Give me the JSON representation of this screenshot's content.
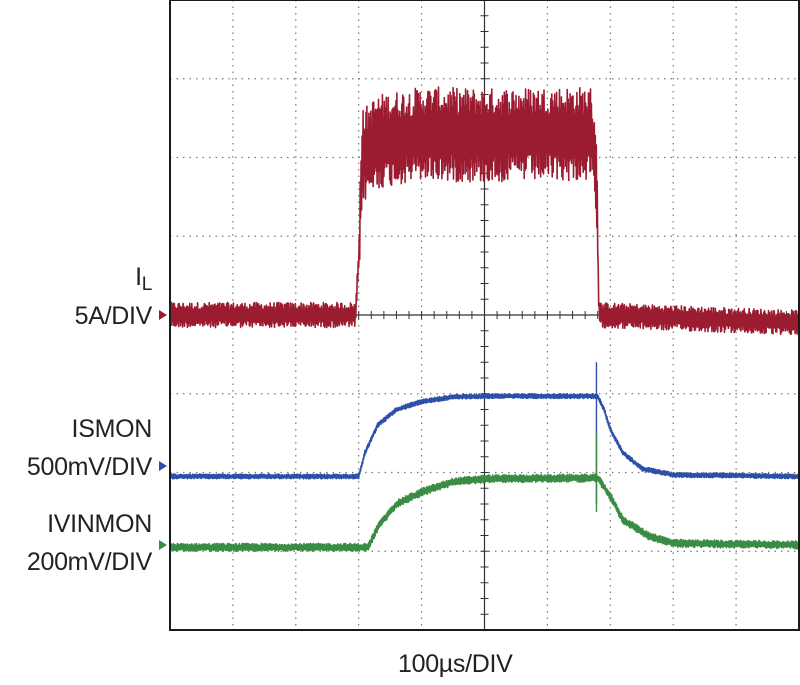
{
  "chart_data": {
    "type": "line",
    "title": "",
    "xlabel": "100µs/DIV",
    "grid": true,
    "divisions": {
      "x": 10,
      "y": 8
    },
    "x_units": "divisions",
    "y_units": "divisions",
    "series": [
      {
        "name": "IL",
        "scale": "5A/DIV",
        "color": "#9b1b30",
        "noise": 0.16,
        "ripple": 0.6,
        "points": [
          [
            0,
            4.0
          ],
          [
            2.95,
            4.0
          ],
          [
            3.0,
            3.3
          ],
          [
            3.05,
            2.0
          ],
          [
            3.3,
            1.8
          ],
          [
            4.0,
            1.7
          ],
          [
            5.0,
            1.72
          ],
          [
            6.0,
            1.7
          ],
          [
            6.7,
            1.7
          ],
          [
            6.78,
            2.2
          ],
          [
            6.82,
            4.0
          ],
          [
            10,
            4.1
          ]
        ]
      },
      {
        "name": "ISMON",
        "scale": "500mV/DIV",
        "color": "#2e4fa8",
        "noise": 0.03,
        "ripple": 0,
        "points": [
          [
            0,
            6.05
          ],
          [
            3.0,
            6.05
          ],
          [
            3.1,
            5.75
          ],
          [
            3.3,
            5.4
          ],
          [
            3.6,
            5.2
          ],
          [
            4.0,
            5.1
          ],
          [
            4.5,
            5.04
          ],
          [
            5.0,
            5.03
          ],
          [
            6.8,
            5.03
          ],
          [
            6.9,
            5.2
          ],
          [
            7.0,
            5.45
          ],
          [
            7.2,
            5.75
          ],
          [
            7.5,
            5.95
          ],
          [
            8.0,
            6.03
          ],
          [
            10,
            6.05
          ]
        ]
      },
      {
        "name": "IVINMON",
        "scale": "200mV/DIV",
        "color": "#3a8c45",
        "noise": 0.05,
        "ripple": 0,
        "points": [
          [
            0,
            6.95
          ],
          [
            3.15,
            6.95
          ],
          [
            3.3,
            6.7
          ],
          [
            3.6,
            6.4
          ],
          [
            4.0,
            6.25
          ],
          [
            4.5,
            6.12
          ],
          [
            5.0,
            6.08
          ],
          [
            6.8,
            6.07
          ],
          [
            7.0,
            6.3
          ],
          [
            7.2,
            6.6
          ],
          [
            7.6,
            6.8
          ],
          [
            8.0,
            6.9
          ],
          [
            10,
            6.92
          ]
        ]
      }
    ],
    "channels": [
      {
        "name_main": "I",
        "name_sub": "L",
        "scale": "5A/DIV",
        "color": "#9b1b30",
        "marker_level": 4.0
      },
      {
        "name_main": "ISMON",
        "scale": "500mV/DIV",
        "color": "#2e4fa8",
        "marker_level": 6.05
      },
      {
        "name_main": "IVINMON",
        "scale": "200mV/DIV",
        "color": "#3a8c45",
        "marker_level": 6.95
      }
    ]
  }
}
